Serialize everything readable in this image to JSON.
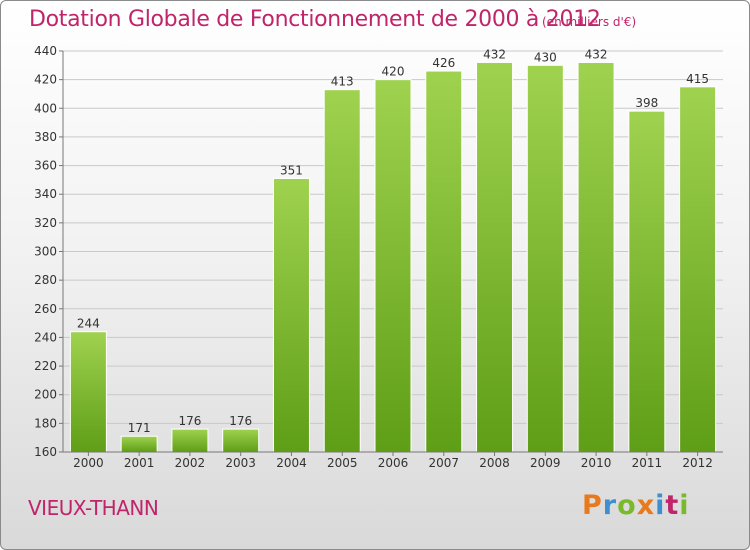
{
  "header": {
    "title": "Dotation Globale de Fonctionnement de 2000 à 2012",
    "subtitle": "(en milliers d'€)"
  },
  "commune": "VIEUX-THANN",
  "logo": {
    "text": "Proxiti",
    "letters": [
      {
        "ch": "P",
        "color": "#e8791c"
      },
      {
        "ch": "r",
        "color": "#3d8fd0"
      },
      {
        "ch": "o",
        "color": "#7ab92b"
      },
      {
        "ch": "x",
        "color": "#e8791c"
      },
      {
        "ch": "i",
        "color": "#3d8fd0"
      },
      {
        "ch": "t",
        "color": "#c0246a"
      },
      {
        "ch": "i",
        "color": "#7ab92b"
      }
    ]
  },
  "colors": {
    "accent": "#c0246a",
    "bar_top": "#9fd24f",
    "bar_bottom": "#5f9e17",
    "grid": "#c9c9c9",
    "text": "#333333"
  },
  "chart_data": {
    "type": "bar",
    "categories": [
      "2000",
      "2001",
      "2002",
      "2003",
      "2004",
      "2005",
      "2006",
      "2007",
      "2008",
      "2009",
      "2010",
      "2011",
      "2012"
    ],
    "values": [
      244,
      171,
      176,
      176,
      351,
      413,
      420,
      426,
      432,
      430,
      432,
      398,
      415
    ],
    "ylim": [
      160,
      440
    ],
    "yticks": [
      160,
      180,
      200,
      220,
      240,
      260,
      280,
      300,
      320,
      340,
      360,
      380,
      400,
      420,
      440
    ],
    "grid": true,
    "title": "Dotation Globale de Fonctionnement de 2000 à 2012",
    "xlabel": "",
    "ylabel": ""
  }
}
